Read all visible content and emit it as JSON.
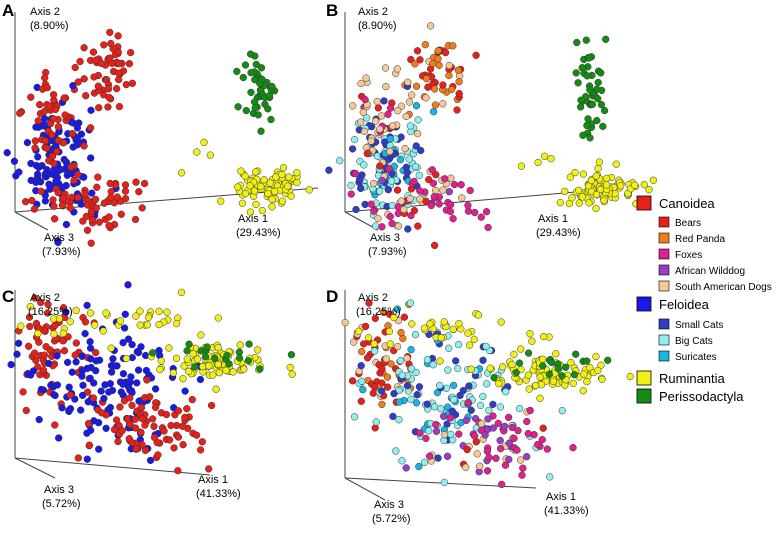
{
  "chart_data": [
    {
      "type": "scatter",
      "panel": "A",
      "coloring": "superfamily",
      "axes": {
        "axis1": {
          "label": "Axis 1",
          "pct": "(29.43%)"
        },
        "axis2": {
          "label": "Axis 2",
          "pct": "(8.90%)"
        },
        "axis3": {
          "label": "Axis 3",
          "pct": "(7.93%)"
        }
      }
    },
    {
      "type": "scatter",
      "panel": "B",
      "coloring": "species",
      "axes": {
        "axis1": {
          "label": "Axis 1",
          "pct": "(29.43%)"
        },
        "axis2": {
          "label": "Axis 2",
          "pct": "(8.90%)"
        },
        "axis3": {
          "label": "Axis 3",
          "pct": "(7.93%)"
        }
      }
    },
    {
      "type": "scatter",
      "panel": "C",
      "coloring": "superfamily",
      "axes": {
        "axis1": {
          "label": "Axis 1",
          "pct": "(41.33%)"
        },
        "axis2": {
          "label": "Axis 2",
          "pct": "(16.25%)"
        },
        "axis3": {
          "label": "Axis 3",
          "pct": "(5.72%)"
        }
      }
    },
    {
      "type": "scatter",
      "panel": "D",
      "coloring": "species",
      "axes": {
        "axis1": {
          "label": "Axis 1",
          "pct": "(41.33%)"
        },
        "axis2": {
          "label": "Axis 2",
          "pct": "(16.25%)"
        },
        "axis3": {
          "label": "Axis 3",
          "pct": "(5.72%)"
        }
      }
    }
  ],
  "legend": {
    "groups": [
      {
        "label": "Canoidea",
        "color": "#e8201a",
        "subs": [
          {
            "label": "Bears",
            "color": "#e8201a"
          },
          {
            "label": "Red Panda",
            "color": "#f07d1a"
          },
          {
            "label": "Foxes",
            "color": "#e0208c"
          },
          {
            "label": "African Wilddog",
            "color": "#9a3cc8"
          },
          {
            "label": "South American Dogs",
            "color": "#f5c896"
          }
        ]
      },
      {
        "label": "Feloidea",
        "color": "#1a1ae6",
        "subs": [
          {
            "label": "Small Cats",
            "color": "#2e3cc8"
          },
          {
            "label": "Big Cats",
            "color": "#8ef0ee"
          },
          {
            "label": "Suricates",
            "color": "#1ab4e6"
          }
        ]
      },
      {
        "label": "Ruminantia",
        "color": "#f0f014",
        "subs": []
      },
      {
        "label": "Perissodactyla",
        "color": "#148c14",
        "subs": []
      }
    ]
  }
}
